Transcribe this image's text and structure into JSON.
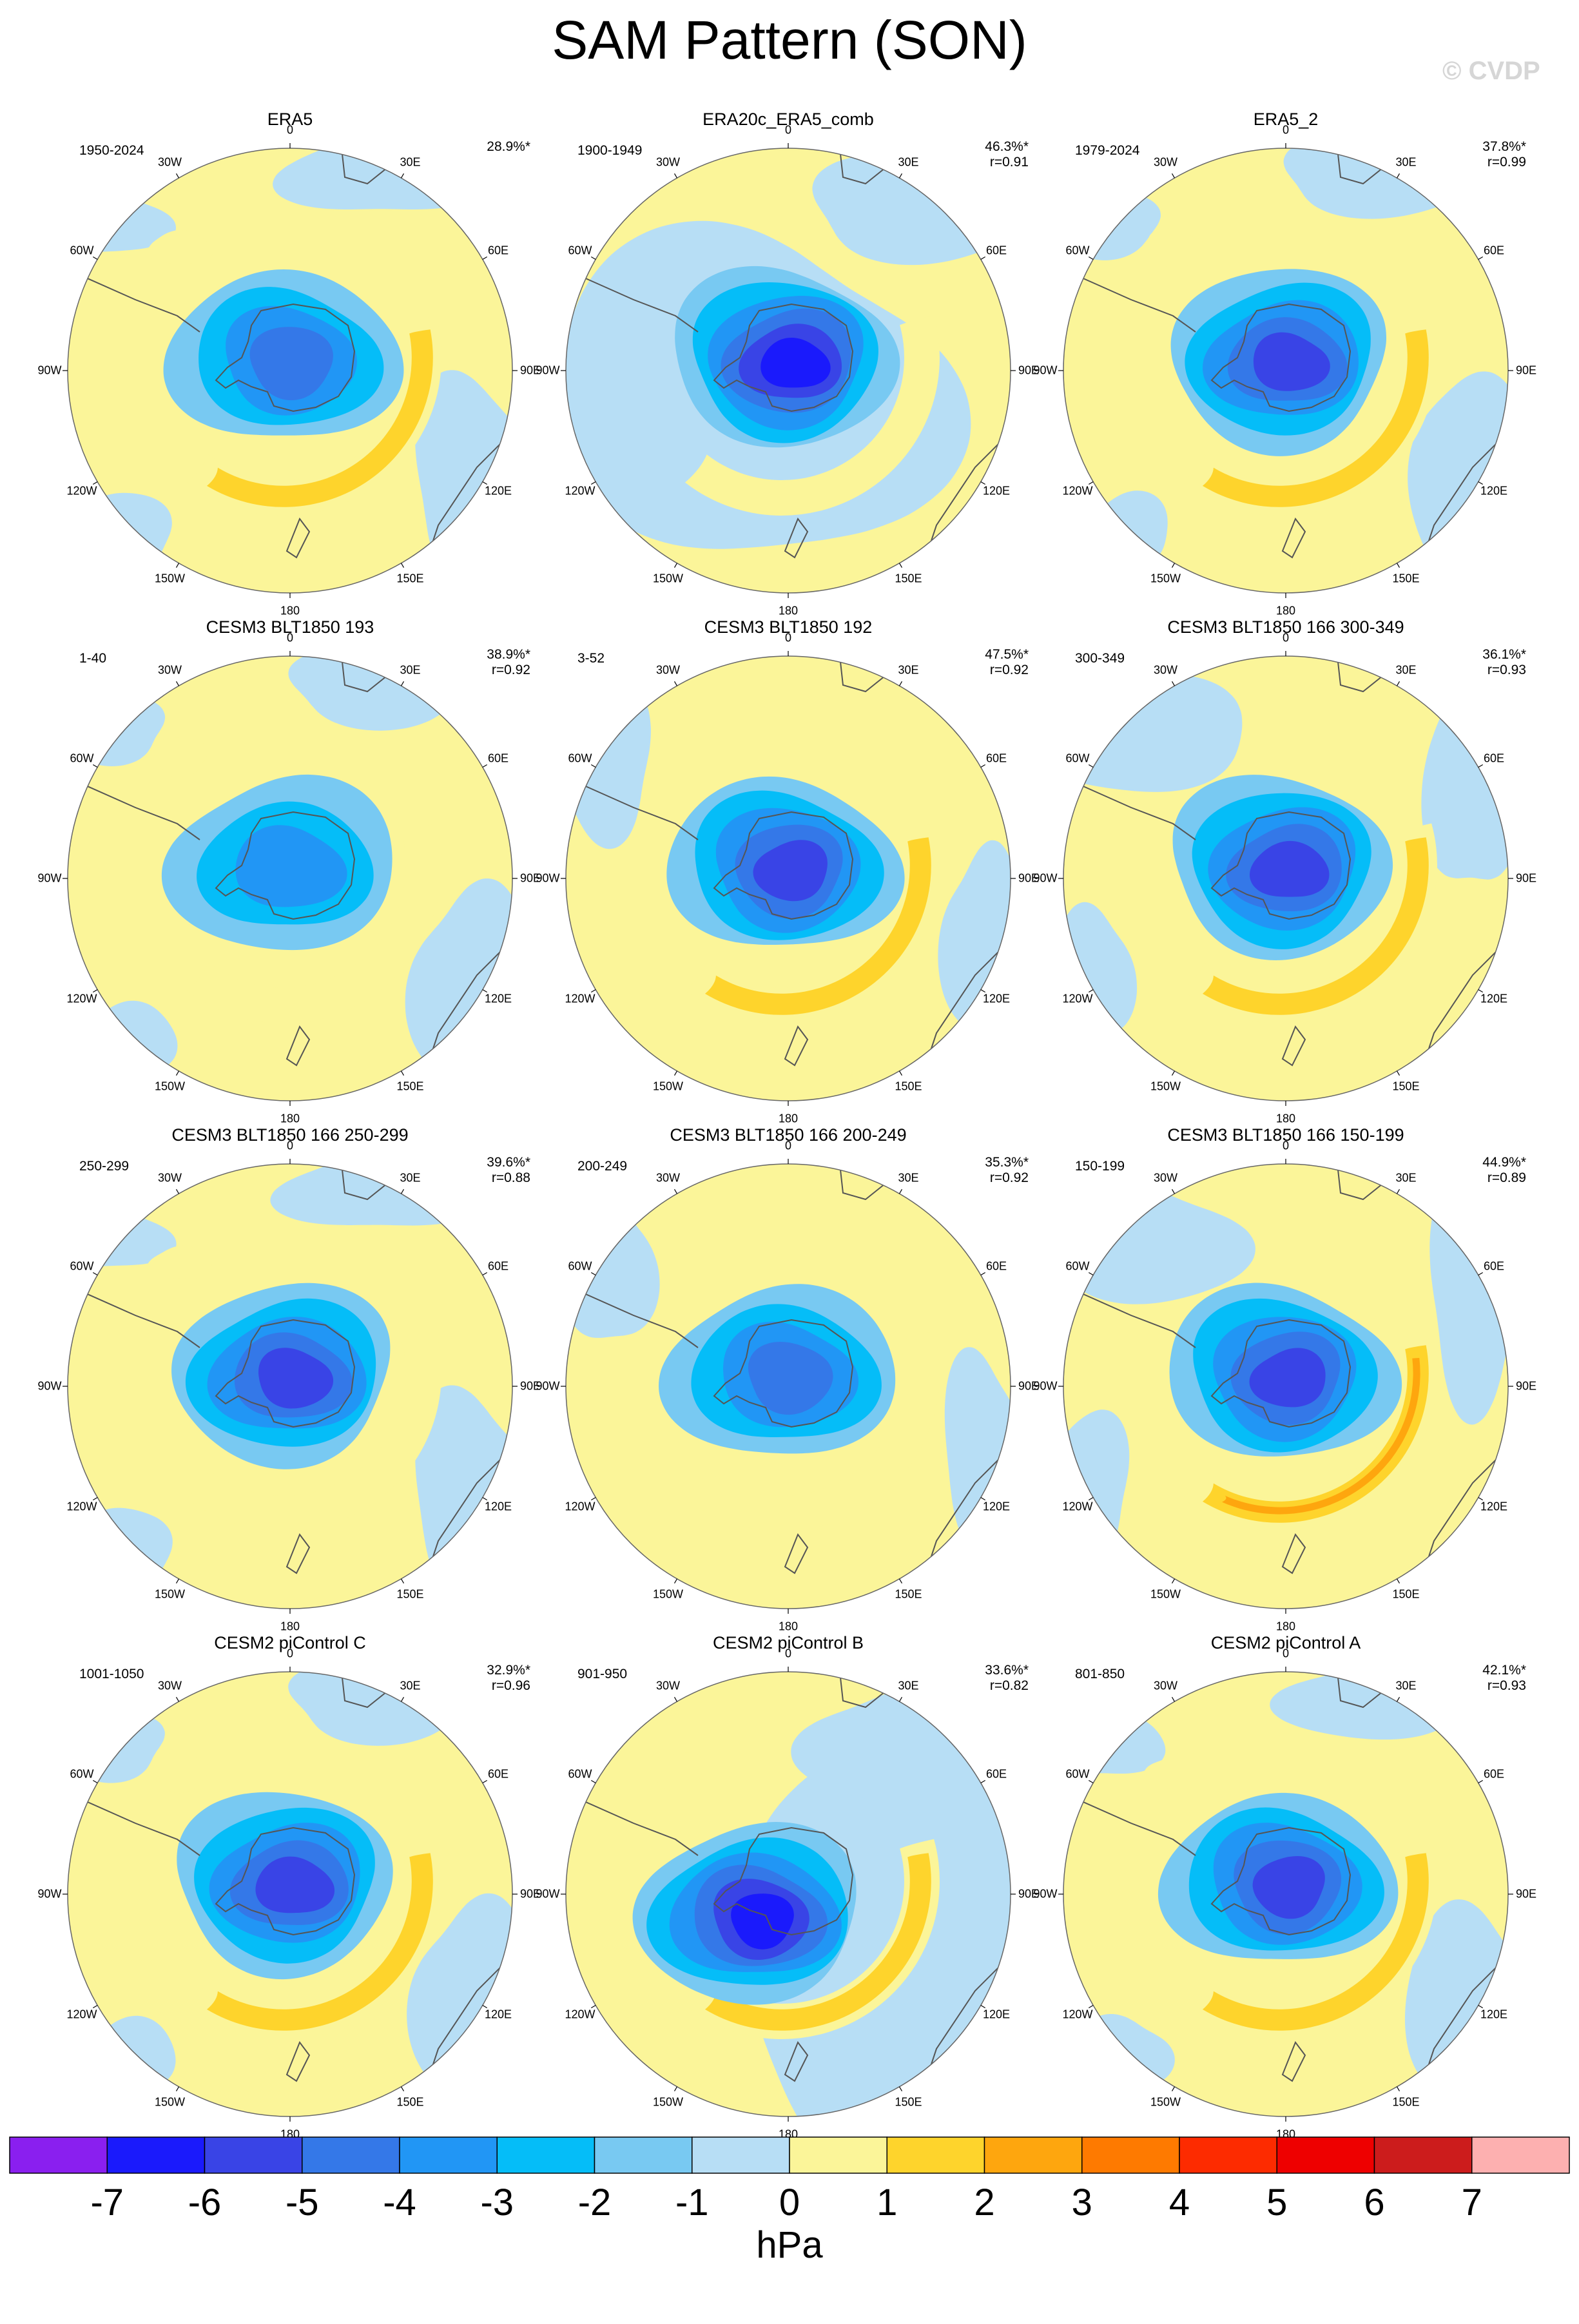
{
  "title": "SAM Pattern (SON)",
  "watermark": "© CVDP",
  "longitude_labels": [
    "0",
    "30E",
    "60E",
    "90E",
    "120E",
    "150E",
    "180",
    "150W",
    "120W",
    "90W",
    "60W",
    "30W"
  ],
  "colors": {
    "ocean_outline": "#666666",
    "coast": "#555555"
  },
  "panels": [
    {
      "title": "ERA5",
      "period": "1950-2024",
      "pct": "28.9%*",
      "r": "",
      "style": "a",
      "low": -4,
      "high": 2
    },
    {
      "title": "ERA20c_ERA5_comb",
      "period": "1900-1949",
      "pct": "46.3%*",
      "r": "r=0.91",
      "style": "b",
      "low": -6,
      "high": 1
    },
    {
      "title": "ERA5_2",
      "period": "1979-2024",
      "pct": "37.8%*",
      "r": "r=0.99",
      "style": "a",
      "low": -5,
      "high": 2
    },
    {
      "title": "CESM3 BLT1850 193",
      "period": "1-40",
      "pct": "38.9%*",
      "r": "r=0.92",
      "style": "a",
      "low": -3,
      "high": 1
    },
    {
      "title": "CESM3 BLT1850 192",
      "period": "3-52",
      "pct": "47.5%*",
      "r": "r=0.92",
      "style": "c",
      "low": -5,
      "high": 2
    },
    {
      "title": "CESM3 BLT1850 166 300-349",
      "period": "300-349",
      "pct": "36.1%*",
      "r": "r=0.93",
      "style": "d",
      "low": -5,
      "high": 2
    },
    {
      "title": "CESM3 BLT1850 166 250-299",
      "period": "250-299",
      "pct": "39.6%*",
      "r": "r=0.88",
      "style": "a",
      "low": -5,
      "high": 1
    },
    {
      "title": "CESM3 BLT1850 166 200-249",
      "period": "200-249",
      "pct": "35.3%*",
      "r": "r=0.92",
      "style": "c",
      "low": -4,
      "high": 1
    },
    {
      "title": "CESM3 BLT1850 166 150-199",
      "period": "150-199",
      "pct": "44.9%*",
      "r": "r=0.89",
      "style": "d",
      "low": -5,
      "high": 3
    },
    {
      "title": "CESM2 piControl C",
      "period": "1001-1050",
      "pct": "32.9%*",
      "r": "r=0.96",
      "style": "a",
      "low": -5,
      "high": 2
    },
    {
      "title": "CESM2 piControl B",
      "period": "901-950",
      "pct": "33.6%*",
      "r": "r=0.82",
      "style": "e",
      "low": -6,
      "high": 2
    },
    {
      "title": "CESM2 piControl A",
      "period": "801-850",
      "pct": "42.1%*",
      "r": "r=0.93",
      "style": "a",
      "low": -5,
      "high": 2
    }
  ],
  "colorbar": {
    "unit": "hPa",
    "tick_labels": [
      "-7",
      "-6",
      "-5",
      "-4",
      "-3",
      "-2",
      "-1",
      "0",
      "1",
      "2",
      "3",
      "4",
      "5",
      "6",
      "7"
    ],
    "colors": [
      "#8a1fef",
      "#1a1afc",
      "#3944e6",
      "#3478e8",
      "#2196f5",
      "#05bdf8",
      "#78c9f2",
      "#b7def5",
      "#fbf599",
      "#fed42c",
      "#fea60e",
      "#fe7a00",
      "#fd2b00",
      "#ee0000",
      "#cc1c1c",
      "#fdb0b0"
    ]
  }
}
